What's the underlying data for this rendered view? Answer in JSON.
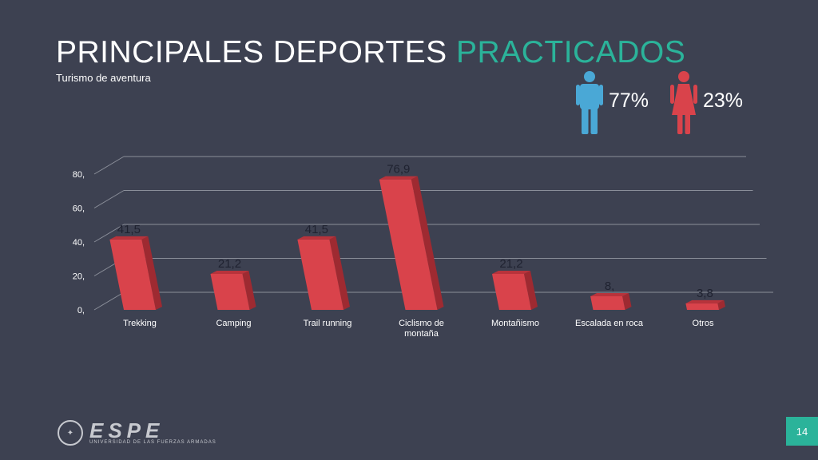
{
  "header": {
    "title_main": "PRINCIPALES DEPORTES",
    "title_accent": "PRACTICADOS",
    "subtitle": "Turismo de aventura"
  },
  "gender": {
    "male_pct": "77%",
    "female_pct": "23%",
    "male_color": "#4aa8d6",
    "female_color": "#d9434b"
  },
  "chart_data": {
    "type": "bar",
    "categories": [
      "Trekking",
      "Camping",
      "Trail running",
      "Ciclismo de montaña",
      "Montañismo",
      "Escalada en roca",
      "Otros"
    ],
    "values": [
      41.5,
      21.2,
      41.5,
      76.9,
      21.2,
      8,
      3.8
    ],
    "value_labels": [
      "41,5",
      "21,2",
      "41,5",
      "76,9",
      "21,2",
      "8,",
      "3,8"
    ],
    "y_ticks": [
      0,
      20,
      40,
      60,
      80
    ],
    "y_tick_labels": [
      "0,",
      "20,",
      "40,",
      "60,",
      "80,"
    ],
    "ylim": [
      0,
      80
    ],
    "grid": true,
    "bar_color": "#d9434b",
    "title": "",
    "xlabel": "",
    "ylabel": ""
  },
  "footer": {
    "brand": "ESPE",
    "brand_sub": "UNIVERSIDAD DE LAS FUERZAS ARMADAS",
    "page_number": "14"
  }
}
